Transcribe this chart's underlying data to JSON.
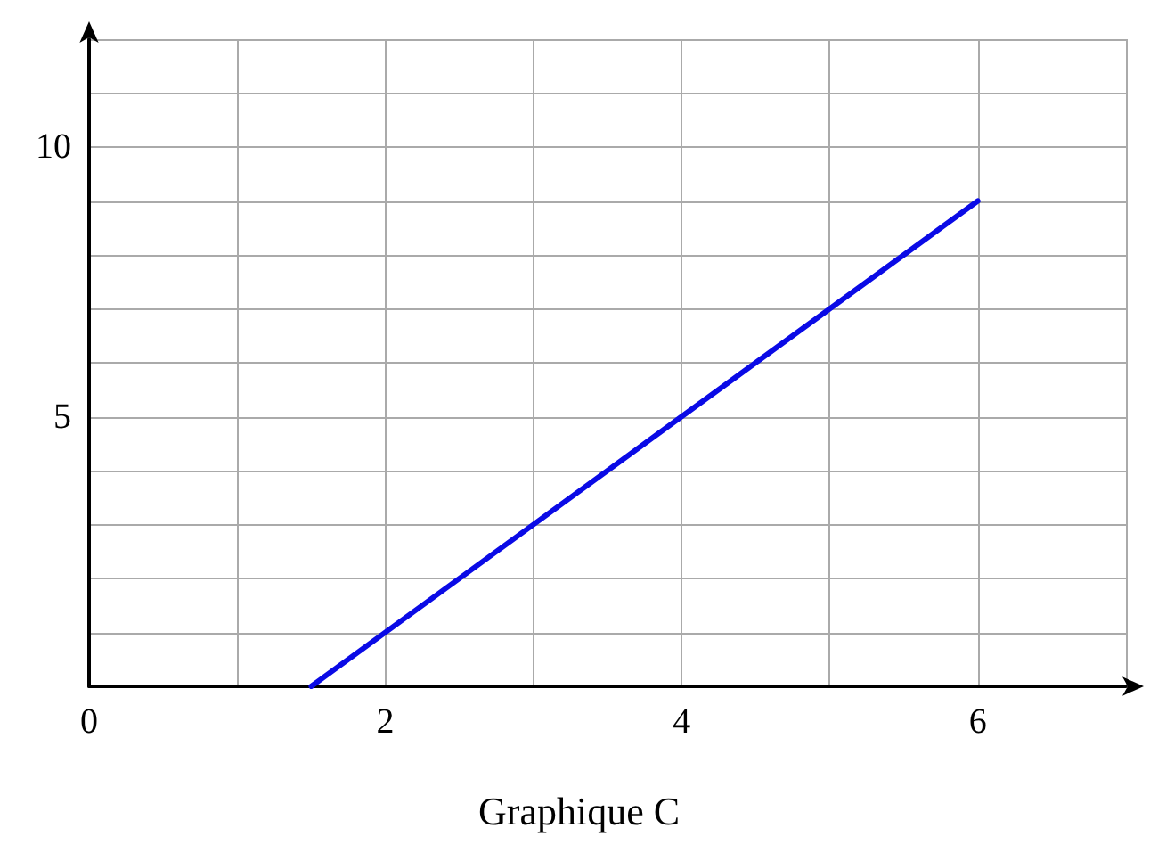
{
  "chart_data": {
    "type": "line",
    "title": "Graphique C",
    "series": [
      {
        "x": [
          1.5,
          6
        ],
        "values": [
          0,
          9
        ],
        "color": "#0a0ae6"
      }
    ],
    "xlim": [
      0,
      7
    ],
    "ylim": [
      0,
      12
    ],
    "xticks": [
      {
        "value": 0,
        "label": "0"
      },
      {
        "value": 1,
        "label": null
      },
      2,
      {
        "value": 3,
        "label": null
      },
      4,
      {
        "value": 5,
        "label": null
      },
      6,
      {
        "value": 7,
        "label": null
      }
    ],
    "yticks": [
      {
        "value": 0,
        "label": null
      },
      {
        "value": 1,
        "label": null
      },
      {
        "value": 2,
        "label": null
      },
      {
        "value": 3,
        "label": null
      },
      {
        "value": 4,
        "label": null
      },
      5,
      {
        "value": 6,
        "label": null
      },
      {
        "value": 7,
        "label": null
      },
      {
        "value": 8,
        "label": null
      },
      {
        "value": 9,
        "label": null
      },
      10,
      {
        "value": 11,
        "label": null
      },
      {
        "value": 12,
        "label": null
      }
    ],
    "grid": true,
    "marker": "none",
    "line_style": "solid"
  }
}
